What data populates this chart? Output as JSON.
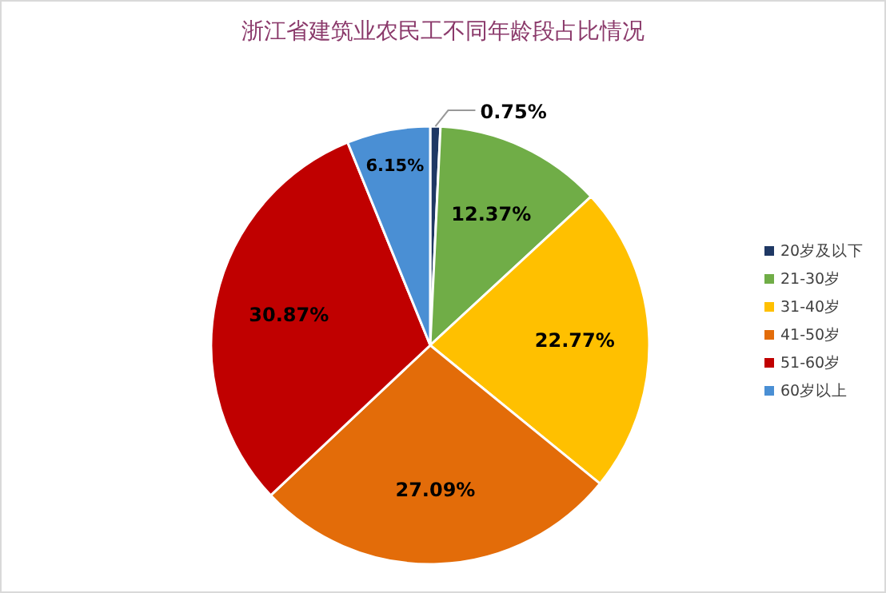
{
  "chart_data": {
    "type": "pie",
    "title": "浙江省建筑业农民工不同年龄段占比情况",
    "categories": [
      "20岁及以下",
      "21-30岁",
      "31-40岁",
      "41-50岁",
      "51-60岁",
      "60岁以上"
    ],
    "values": [
      0.75,
      12.37,
      22.77,
      27.09,
      30.87,
      6.15
    ],
    "colors": [
      "#1f3864",
      "#70ad47",
      "#ffc000",
      "#e36c09",
      "#c00000",
      "#4a8fd4"
    ],
    "value_labels": [
      "0.75%",
      "12.37%",
      "22.77%",
      "27.09%",
      "30.87%",
      "6.15%"
    ],
    "legend": "right"
  }
}
